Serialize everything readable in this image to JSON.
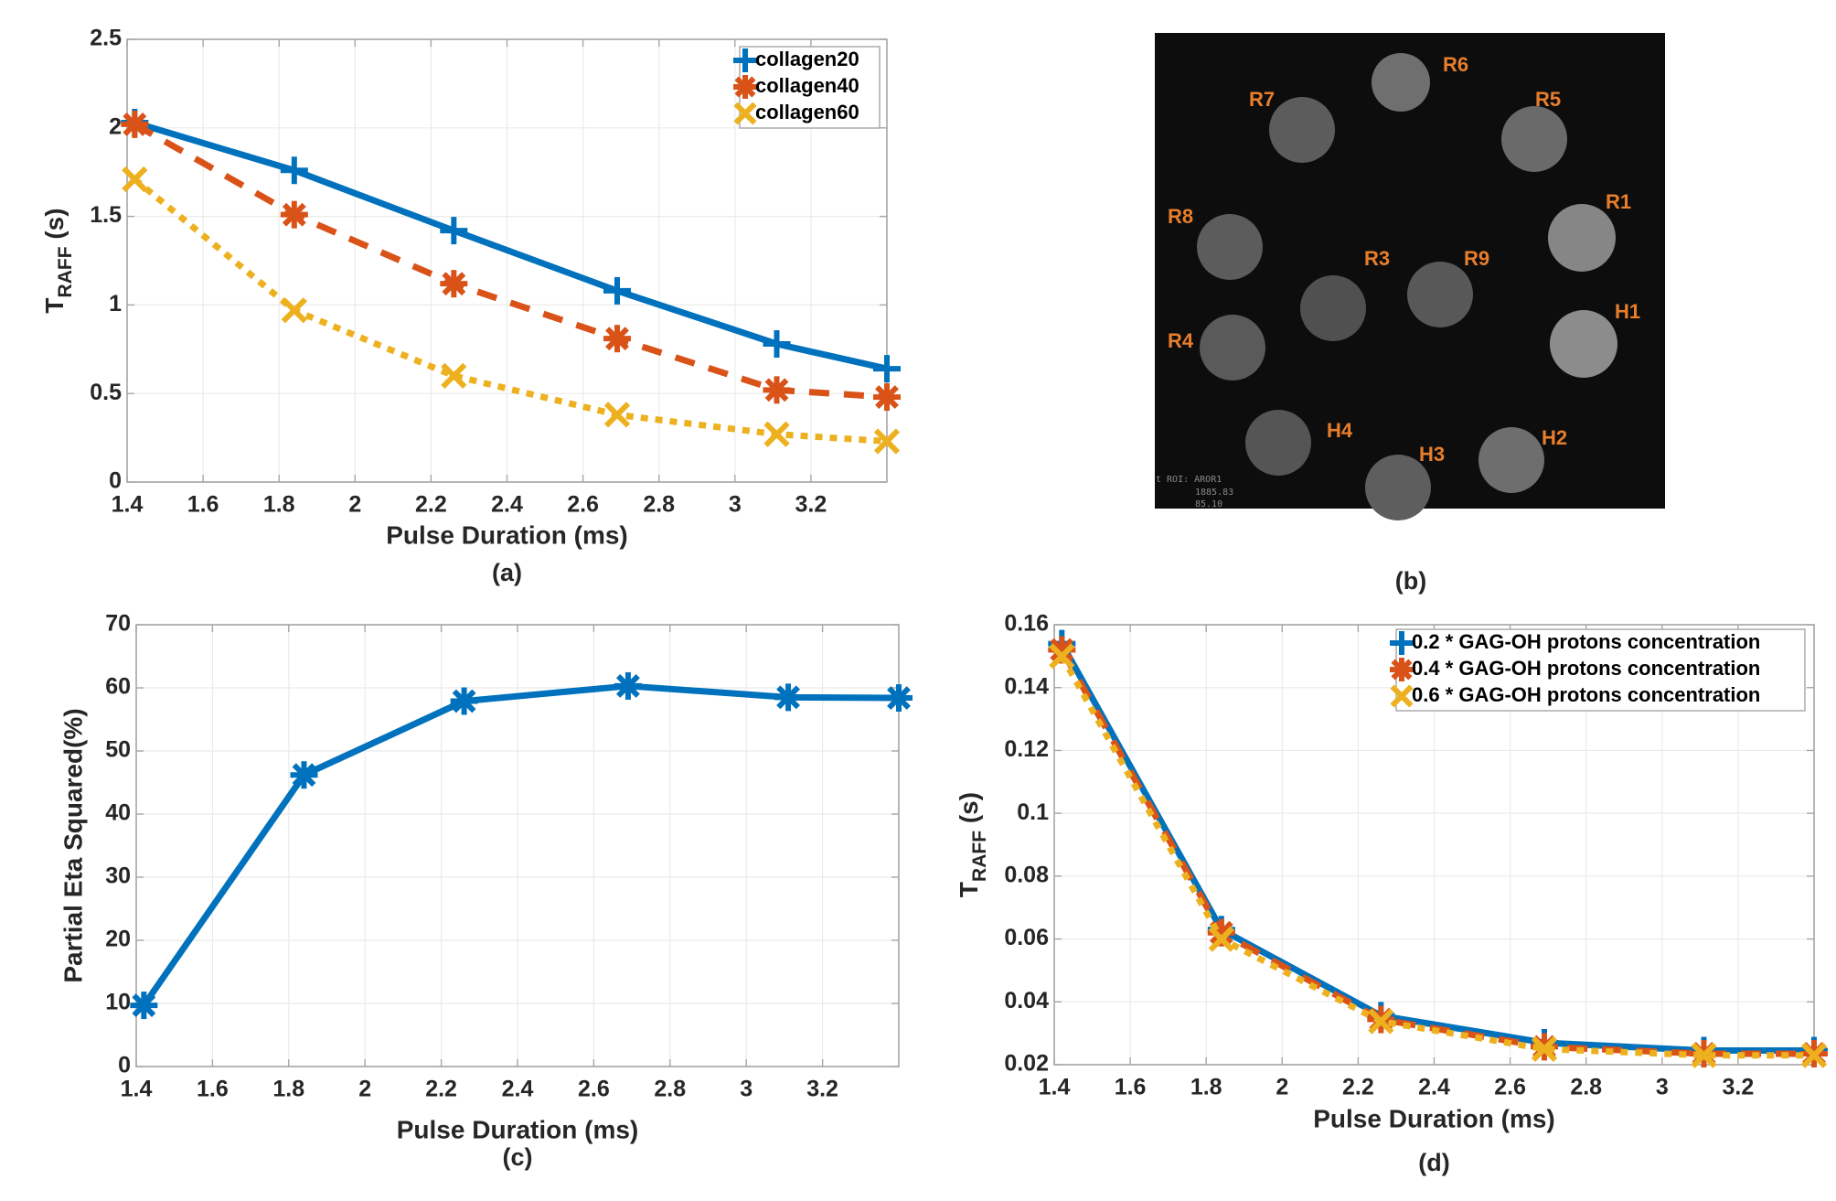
{
  "chart_data": [
    {
      "id": "a",
      "type": "line",
      "caption": "(a)",
      "xlabel": "Pulse Duration (ms)",
      "ylabel_main": "T",
      "ylabel_sub": "RAFF",
      "ylabel_unit": " (s)",
      "xlim": [
        1.4,
        3.4
      ],
      "ylim": [
        0,
        2.5
      ],
      "xticks": [
        1.4,
        1.6,
        1.8,
        2,
        2.2,
        2.4,
        2.6,
        2.8,
        3,
        3.2
      ],
      "xtick_labels": [
        "1.4",
        "1.6",
        "1.8",
        "2",
        "2.2",
        "2.4",
        "2.6",
        "2.8",
        "3",
        "3.2"
      ],
      "yticks": [
        0,
        0.5,
        1,
        1.5,
        2,
        2.5
      ],
      "ytick_labels": [
        "0",
        "0.5",
        "1",
        "1.5",
        "2",
        "2.5"
      ],
      "grid": true,
      "legend_position": "top-right",
      "x": [
        1.42,
        1.84,
        2.26,
        2.69,
        3.11,
        3.4
      ],
      "series": [
        {
          "name": "collagen20",
          "color": "#0072BD",
          "marker": "plus",
          "linestyle": "solid",
          "values": [
            2.03,
            1.76,
            1.42,
            1.08,
            0.78,
            0.64
          ]
        },
        {
          "name": "collagen40",
          "color": "#D95319",
          "marker": "asterisk",
          "linestyle": "dashed",
          "values": [
            2.02,
            1.51,
            1.12,
            0.81,
            0.52,
            0.48
          ]
        },
        {
          "name": "collagen60",
          "color": "#EDB120",
          "marker": "x",
          "linestyle": "dotted",
          "values": [
            1.71,
            0.97,
            0.6,
            0.38,
            0.27,
            0.23
          ]
        }
      ]
    },
    {
      "id": "c",
      "type": "line",
      "caption": "(c)",
      "xlabel": "Pulse Duration (ms)",
      "ylabel": "Partial Eta Squared(%)",
      "xlim": [
        1.4,
        3.4
      ],
      "ylim": [
        0,
        70
      ],
      "xticks": [
        1.4,
        1.6,
        1.8,
        2,
        2.2,
        2.4,
        2.6,
        2.8,
        3,
        3.2
      ],
      "xtick_labels": [
        "1.4",
        "1.6",
        "1.8",
        "2",
        "2.2",
        "2.4",
        "2.6",
        "2.8",
        "3",
        "3.2"
      ],
      "yticks": [
        0,
        10,
        20,
        30,
        40,
        50,
        60,
        70
      ],
      "ytick_labels": [
        "0",
        "10",
        "20",
        "30",
        "40",
        "50",
        "60",
        "70"
      ],
      "grid": true,
      "x": [
        1.42,
        1.84,
        2.26,
        2.69,
        3.11,
        3.4
      ],
      "series": [
        {
          "name": "Partial Eta Squared",
          "color": "#0072BD",
          "marker": "asterisk",
          "linestyle": "solid",
          "values": [
            9.7,
            46.2,
            57.9,
            60.3,
            58.5,
            58.4
          ]
        }
      ]
    },
    {
      "id": "d",
      "type": "line",
      "caption": "(d)",
      "xlabel": "Pulse Duration (ms)",
      "ylabel_main": "T",
      "ylabel_sub": "RAFF",
      "ylabel_unit": " (s)",
      "xlim": [
        1.4,
        3.4
      ],
      "ylim": [
        0.02,
        0.16
      ],
      "xticks": [
        1.4,
        1.6,
        1.8,
        2,
        2.2,
        2.4,
        2.6,
        2.8,
        3,
        3.2
      ],
      "xtick_labels": [
        "1.4",
        "1.6",
        "1.8",
        "2",
        "2.2",
        "2.4",
        "2.6",
        "2.8",
        "3",
        "3.2"
      ],
      "yticks": [
        0.02,
        0.04,
        0.06,
        0.08,
        0.1,
        0.12,
        0.14,
        0.16
      ],
      "ytick_labels": [
        "0.02",
        "0.04",
        "0.06",
        "0.08",
        "0.1",
        "0.12",
        "0.14",
        "0.16"
      ],
      "grid": true,
      "legend_position": "top-right",
      "x": [
        1.42,
        1.84,
        2.26,
        2.69,
        3.11,
        3.4
      ],
      "series": [
        {
          "name": "0.2 * GAG-OH protons concentration",
          "color": "#0072BD",
          "marker": "plus",
          "linestyle": "solid",
          "values": [
            0.154,
            0.063,
            0.0356,
            0.027,
            0.0245,
            0.0245
          ]
        },
        {
          "name": "0.4 * GAG-OH protons concentration",
          "color": "#D95319",
          "marker": "asterisk",
          "linestyle": "dashed",
          "values": [
            0.152,
            0.062,
            0.0344,
            0.0257,
            0.0235,
            0.0235
          ]
        },
        {
          "name": "0.6 * GAG-OH protons concentration",
          "color": "#EDB120",
          "marker": "x",
          "linestyle": "dotted",
          "values": [
            0.15,
            0.06,
            0.0338,
            0.025,
            0.023,
            0.023
          ]
        }
      ]
    }
  ],
  "mri_panel": {
    "caption": "(b)",
    "label_color": "#E87E2C",
    "samples": [
      {
        "label": "R6"
      },
      {
        "label": "R7"
      },
      {
        "label": "R5"
      },
      {
        "label": "R1"
      },
      {
        "label": "R8"
      },
      {
        "label": "R3"
      },
      {
        "label": "R9"
      },
      {
        "label": "H1"
      },
      {
        "label": "R4"
      },
      {
        "label": "H4"
      },
      {
        "label": "H3"
      },
      {
        "label": "H2"
      }
    ],
    "overlay_lines": [
      "t ROI: AROR1",
      "1885.83",
      "85.10"
    ]
  }
}
